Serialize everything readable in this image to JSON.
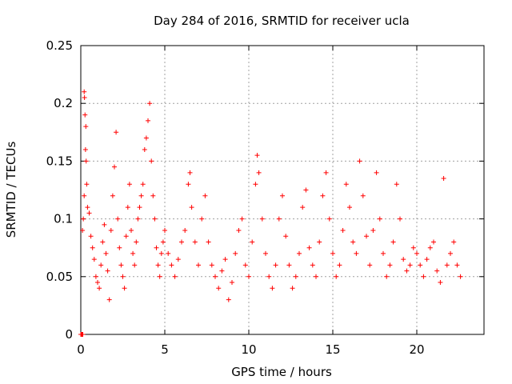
{
  "chart_data": {
    "type": "scatter",
    "title": "Day 284 of 2016, SRMTID for receiver ucla",
    "xlabel": "GPS time / hours",
    "ylabel": "SRMTID / TECUs",
    "xlim": [
      0,
      24
    ],
    "ylim": [
      0,
      0.25
    ],
    "x_ticks": [
      0,
      5,
      10,
      15,
      20
    ],
    "x_tick_labels": [
      "0",
      "5",
      "10",
      "15",
      "20"
    ],
    "y_ticks": [
      0,
      0.05,
      0.1,
      0.15,
      0.2,
      0.25
    ],
    "y_tick_labels": [
      "0",
      "0.05",
      "0.1",
      "0.15",
      "0.2",
      "0.25"
    ],
    "grid": true,
    "marker": "plus",
    "color": "#ff0000",
    "series": [
      {
        "name": "SRMTID",
        "points": [
          [
            0.0,
            0.0
          ],
          [
            0.05,
            0.0
          ],
          [
            0.08,
            0.0
          ],
          [
            0.12,
            0.0
          ],
          [
            0.2,
            0.21
          ],
          [
            0.22,
            0.205
          ],
          [
            0.25,
            0.19
          ],
          [
            0.3,
            0.18
          ],
          [
            0.28,
            0.16
          ],
          [
            0.32,
            0.15
          ],
          [
            0.1,
            0.09
          ],
          [
            0.15,
            0.1
          ],
          [
            0.2,
            0.12
          ],
          [
            0.35,
            0.13
          ],
          [
            0.4,
            0.11
          ],
          [
            0.5,
            0.105
          ],
          [
            0.6,
            0.085
          ],
          [
            0.7,
            0.075
          ],
          [
            0.8,
            0.065
          ],
          [
            0.9,
            0.05
          ],
          [
            1.0,
            0.045
          ],
          [
            1.1,
            0.04
          ],
          [
            1.2,
            0.06
          ],
          [
            1.3,
            0.08
          ],
          [
            1.4,
            0.095
          ],
          [
            1.5,
            0.07
          ],
          [
            1.6,
            0.055
          ],
          [
            1.7,
            0.03
          ],
          [
            1.8,
            0.09
          ],
          [
            1.9,
            0.12
          ],
          [
            2.0,
            0.145
          ],
          [
            2.1,
            0.175
          ],
          [
            2.2,
            0.1
          ],
          [
            2.3,
            0.075
          ],
          [
            2.4,
            0.06
          ],
          [
            2.5,
            0.05
          ],
          [
            2.6,
            0.04
          ],
          [
            2.7,
            0.085
          ],
          [
            2.8,
            0.11
          ],
          [
            2.9,
            0.13
          ],
          [
            3.0,
            0.09
          ],
          [
            3.1,
            0.07
          ],
          [
            3.2,
            0.06
          ],
          [
            3.3,
            0.08
          ],
          [
            3.4,
            0.1
          ],
          [
            3.5,
            0.11
          ],
          [
            3.6,
            0.12
          ],
          [
            3.7,
            0.13
          ],
          [
            3.8,
            0.16
          ],
          [
            3.9,
            0.17
          ],
          [
            4.0,
            0.185
          ],
          [
            4.1,
            0.2
          ],
          [
            4.2,
            0.15
          ],
          [
            4.3,
            0.12
          ],
          [
            4.4,
            0.1
          ],
          [
            4.5,
            0.075
          ],
          [
            4.6,
            0.06
          ],
          [
            4.7,
            0.05
          ],
          [
            4.8,
            0.07
          ],
          [
            4.9,
            0.08
          ],
          [
            5.0,
            0.09
          ],
          [
            5.2,
            0.07
          ],
          [
            5.4,
            0.06
          ],
          [
            5.6,
            0.05
          ],
          [
            5.8,
            0.065
          ],
          [
            6.0,
            0.08
          ],
          [
            6.2,
            0.09
          ],
          [
            6.4,
            0.13
          ],
          [
            6.5,
            0.14
          ],
          [
            6.6,
            0.11
          ],
          [
            6.8,
            0.08
          ],
          [
            7.0,
            0.06
          ],
          [
            7.2,
            0.1
          ],
          [
            7.4,
            0.12
          ],
          [
            7.6,
            0.08
          ],
          [
            7.8,
            0.06
          ],
          [
            8.0,
            0.05
          ],
          [
            8.2,
            0.04
          ],
          [
            8.4,
            0.055
          ],
          [
            8.6,
            0.065
          ],
          [
            8.8,
            0.03
          ],
          [
            9.0,
            0.045
          ],
          [
            9.2,
            0.07
          ],
          [
            9.4,
            0.09
          ],
          [
            9.6,
            0.1
          ],
          [
            9.8,
            0.06
          ],
          [
            10.0,
            0.05
          ],
          [
            10.2,
            0.08
          ],
          [
            10.4,
            0.13
          ],
          [
            10.5,
            0.155
          ],
          [
            10.6,
            0.14
          ],
          [
            10.8,
            0.1
          ],
          [
            11.0,
            0.07
          ],
          [
            11.2,
            0.05
          ],
          [
            11.4,
            0.04
          ],
          [
            11.6,
            0.06
          ],
          [
            11.8,
            0.1
          ],
          [
            12.0,
            0.12
          ],
          [
            12.2,
            0.085
          ],
          [
            12.4,
            0.06
          ],
          [
            12.6,
            0.04
          ],
          [
            12.8,
            0.05
          ],
          [
            13.0,
            0.07
          ],
          [
            13.2,
            0.11
          ],
          [
            13.4,
            0.125
          ],
          [
            13.6,
            0.075
          ],
          [
            13.8,
            0.06
          ],
          [
            14.0,
            0.05
          ],
          [
            14.2,
            0.08
          ],
          [
            14.4,
            0.12
          ],
          [
            14.6,
            0.14
          ],
          [
            14.8,
            0.1
          ],
          [
            15.0,
            0.07
          ],
          [
            15.2,
            0.05
          ],
          [
            15.4,
            0.06
          ],
          [
            15.6,
            0.09
          ],
          [
            15.8,
            0.13
          ],
          [
            16.0,
            0.11
          ],
          [
            16.2,
            0.08
          ],
          [
            16.4,
            0.07
          ],
          [
            16.6,
            0.15
          ],
          [
            16.8,
            0.12
          ],
          [
            17.0,
            0.085
          ],
          [
            17.2,
            0.06
          ],
          [
            17.4,
            0.09
          ],
          [
            17.6,
            0.14
          ],
          [
            17.8,
            0.1
          ],
          [
            18.0,
            0.07
          ],
          [
            18.2,
            0.05
          ],
          [
            18.4,
            0.06
          ],
          [
            18.6,
            0.08
          ],
          [
            18.8,
            0.13
          ],
          [
            19.0,
            0.1
          ],
          [
            19.2,
            0.065
          ],
          [
            19.4,
            0.055
          ],
          [
            19.6,
            0.06
          ],
          [
            19.8,
            0.075
          ],
          [
            20.0,
            0.07
          ],
          [
            20.2,
            0.06
          ],
          [
            20.4,
            0.05
          ],
          [
            20.6,
            0.065
          ],
          [
            20.8,
            0.075
          ],
          [
            21.0,
            0.08
          ],
          [
            21.2,
            0.055
          ],
          [
            21.4,
            0.045
          ],
          [
            21.6,
            0.135
          ],
          [
            21.8,
            0.06
          ],
          [
            22.0,
            0.07
          ],
          [
            22.2,
            0.08
          ],
          [
            22.4,
            0.06
          ],
          [
            22.6,
            0.05
          ]
        ]
      }
    ]
  }
}
